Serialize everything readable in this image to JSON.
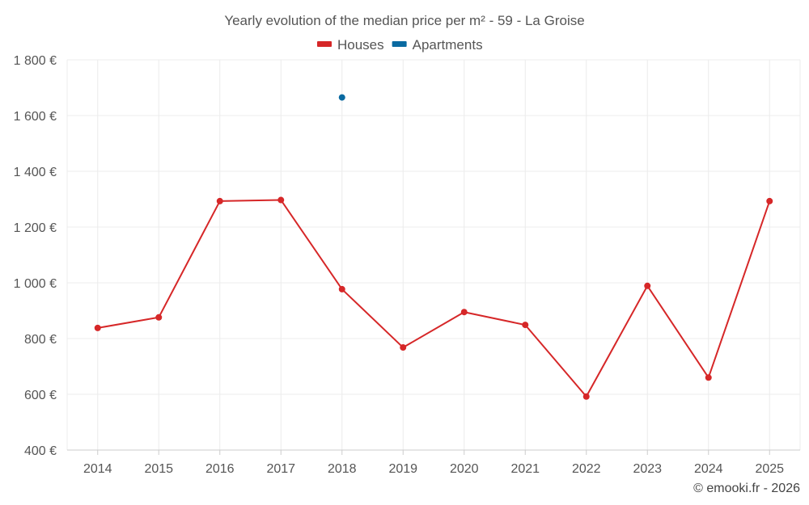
{
  "chart_data": {
    "type": "line",
    "title": "Yearly evolution of the median price per m² - 59 - La Groise",
    "categories": [
      "2014",
      "2015",
      "2016",
      "2017",
      "2018",
      "2019",
      "2020",
      "2021",
      "2022",
      "2023",
      "2024",
      "2025"
    ],
    "series": [
      {
        "name": "Houses",
        "color": "#d62728",
        "values": [
          838,
          876,
          1293,
          1297,
          977,
          768,
          895,
          849,
          592,
          989,
          660,
          1293
        ]
      },
      {
        "name": "Apartments",
        "color": "#0a6aa1",
        "values": [
          null,
          null,
          null,
          null,
          1665,
          null,
          null,
          null,
          null,
          null,
          null,
          null
        ]
      }
    ],
    "ylim": [
      400,
      1800
    ],
    "yticks": [
      400,
      600,
      800,
      1000,
      1200,
      1400,
      1600,
      1800
    ],
    "ytick_labels": [
      "400 €",
      "600 €",
      "800 €",
      "1 000 €",
      "1 200 €",
      "1 400 €",
      "1 600 €",
      "1 800 €"
    ],
    "xlabel": "",
    "ylabel": "",
    "grid": true,
    "legend_position": "top-center"
  },
  "credit": "© emooki.fr - 2026"
}
